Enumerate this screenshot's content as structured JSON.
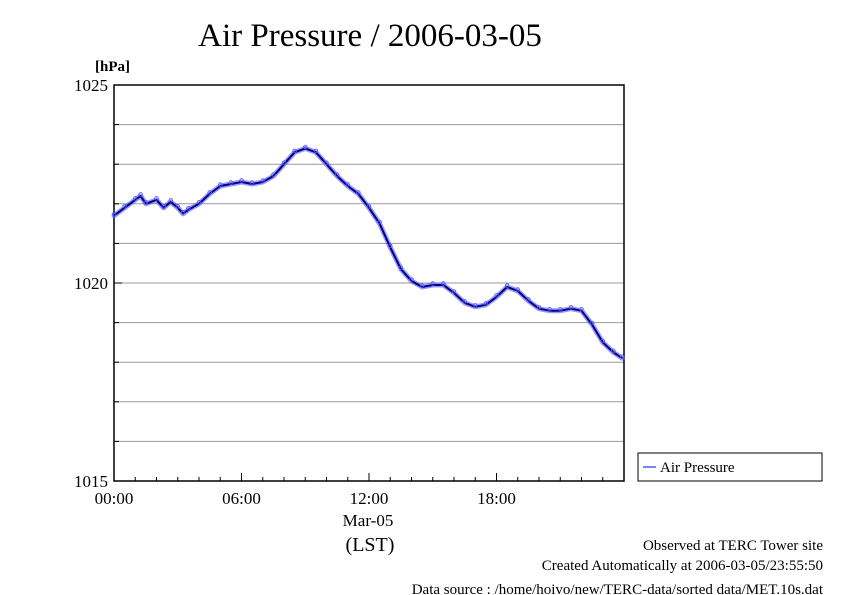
{
  "chart_data": {
    "type": "line",
    "title": "Air Pressure / 2006-03-05",
    "ylabel": "[hPa]",
    "xlabel": "(LST)",
    "date_label": "Mar-05",
    "xlim": [
      "00:00",
      "24:00"
    ],
    "ylim": [
      1015,
      1025
    ],
    "grid": true,
    "legend_position": "right",
    "y_ticks": [
      {
        "value": 1015,
        "label": "1015"
      },
      {
        "value": 1020,
        "label": "1020"
      },
      {
        "value": 1025,
        "label": "1025"
      }
    ],
    "x_ticks": [
      {
        "hour": 0,
        "label": "00:00"
      },
      {
        "hour": 6,
        "label": "06:00"
      },
      {
        "hour": 12,
        "label": "12:00"
      },
      {
        "hour": 18,
        "label": "18:00"
      }
    ],
    "series": [
      {
        "name": "Air Pressure",
        "color": "#5555ff",
        "line_color": "#000080",
        "points": [
          [
            "00:00",
            1021.7
          ],
          [
            "00:30",
            1021.9
          ],
          [
            "01:00",
            1022.1
          ],
          [
            "01:15",
            1022.2
          ],
          [
            "01:30",
            1022.0
          ],
          [
            "02:00",
            1022.1
          ],
          [
            "02:20",
            1021.9
          ],
          [
            "02:40",
            1022.05
          ],
          [
            "03:00",
            1021.9
          ],
          [
            "03:15",
            1021.75
          ],
          [
            "03:30",
            1021.85
          ],
          [
            "04:00",
            1022.0
          ],
          [
            "04:30",
            1022.25
          ],
          [
            "05:00",
            1022.45
          ],
          [
            "05:30",
            1022.5
          ],
          [
            "06:00",
            1022.55
          ],
          [
            "06:30",
            1022.5
          ],
          [
            "07:00",
            1022.55
          ],
          [
            "07:30",
            1022.7
          ],
          [
            "08:00",
            1023.0
          ],
          [
            "08:30",
            1023.3
          ],
          [
            "09:00",
            1023.4
          ],
          [
            "09:30",
            1023.3
          ],
          [
            "10:00",
            1023.0
          ],
          [
            "10:30",
            1022.7
          ],
          [
            "11:00",
            1022.45
          ],
          [
            "11:30",
            1022.25
          ],
          [
            "12:00",
            1021.9
          ],
          [
            "12:30",
            1021.5
          ],
          [
            "13:00",
            1020.9
          ],
          [
            "13:30",
            1020.35
          ],
          [
            "14:00",
            1020.05
          ],
          [
            "14:30",
            1019.9
          ],
          [
            "15:00",
            1019.95
          ],
          [
            "15:30",
            1019.95
          ],
          [
            "16:00",
            1019.75
          ],
          [
            "16:30",
            1019.5
          ],
          [
            "17:00",
            1019.4
          ],
          [
            "17:30",
            1019.45
          ],
          [
            "18:00",
            1019.65
          ],
          [
            "18:30",
            1019.9
          ],
          [
            "19:00",
            1019.8
          ],
          [
            "19:30",
            1019.55
          ],
          [
            "20:00",
            1019.35
          ],
          [
            "20:30",
            1019.3
          ],
          [
            "21:00",
            1019.3
          ],
          [
            "21:30",
            1019.35
          ],
          [
            "22:00",
            1019.3
          ],
          [
            "22:30",
            1018.95
          ],
          [
            "23:00",
            1018.5
          ],
          [
            "23:30",
            1018.25
          ],
          [
            "23:55",
            1018.1
          ]
        ]
      }
    ]
  },
  "footer": {
    "observed": "Observed at TERC Tower site",
    "created": "Created Automatically at 2006-03-05/23:55:50",
    "source": "Data source : /home/hoivo/new/TERC-data/sorted  data/MET.10s.dat"
  }
}
